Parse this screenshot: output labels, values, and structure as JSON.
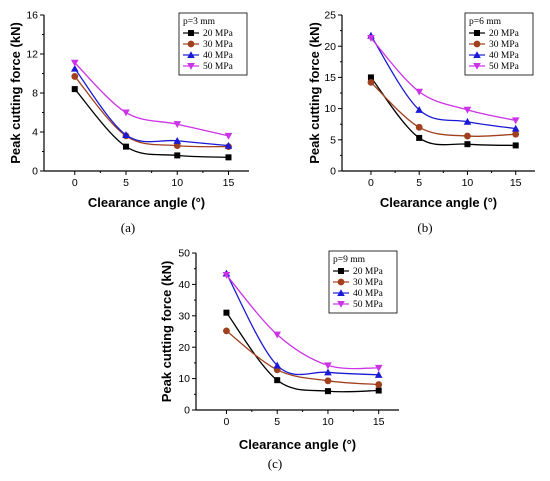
{
  "series_colors": {
    "20 MPa": "#000000",
    "30 MPa": "#a0401e",
    "40 MPa": "#1a1ad6",
    "50 MPa": "#cc33e6"
  },
  "markers": {
    "20 MPa": "square",
    "30 MPa": "circle",
    "40 MPa": "triangle-up",
    "50 MPa": "triangle-down"
  },
  "chart_data": [
    {
      "type": "scatter",
      "panel_label": "(a)",
      "legend_title": "p=3 mm",
      "xlabel": "Clearance angle (°)",
      "ylabel": "Peak cutting force (kN)",
      "xlim": [
        -3,
        17
      ],
      "ylim": [
        0,
        16
      ],
      "xticks": [
        0,
        5,
        10,
        15
      ],
      "yticks": [
        0,
        4,
        8,
        12,
        16
      ],
      "legend_position": "top-right",
      "x": [
        0,
        5,
        10,
        15
      ],
      "series": [
        {
          "name": "20 MPa",
          "values": [
            8.4,
            2.5,
            1.6,
            1.4
          ]
        },
        {
          "name": "30 MPa",
          "values": [
            9.7,
            3.6,
            2.6,
            2.5
          ]
        },
        {
          "name": "40 MPa",
          "values": [
            10.5,
            3.7,
            3.1,
            2.6
          ]
        },
        {
          "name": "50 MPa",
          "values": [
            11.1,
            6.0,
            4.8,
            3.6
          ]
        }
      ]
    },
    {
      "type": "scatter",
      "panel_label": "(b)",
      "legend_title": "p=6 mm",
      "xlabel": "Clearance angle (°)",
      "ylabel": "Peak cutting force (kN)",
      "xlim": [
        -3,
        17
      ],
      "ylim": [
        0,
        25
      ],
      "xticks": [
        0,
        5,
        10,
        15
      ],
      "yticks": [
        0,
        5,
        10,
        15,
        20,
        25
      ],
      "legend_position": "top-right",
      "x": [
        0,
        5,
        10,
        15
      ],
      "series": [
        {
          "name": "20 MPa",
          "values": [
            15.0,
            5.3,
            4.3,
            4.1
          ]
        },
        {
          "name": "30 MPa",
          "values": [
            14.2,
            7.0,
            5.6,
            5.9
          ]
        },
        {
          "name": "40 MPa",
          "values": [
            21.7,
            9.8,
            7.9,
            6.8
          ]
        },
        {
          "name": "50 MPa",
          "values": [
            21.3,
            12.7,
            9.8,
            8.1
          ]
        }
      ]
    },
    {
      "type": "scatter",
      "panel_label": "(c)",
      "legend_title": "p=9 mm",
      "xlabel": "Clearance angle (°)",
      "ylabel": "Peak cutting force (kN)",
      "xlim": [
        -3,
        17
      ],
      "ylim": [
        0,
        50
      ],
      "xticks": [
        0,
        5,
        10,
        15
      ],
      "yticks": [
        0,
        10,
        20,
        30,
        40,
        50
      ],
      "legend_position": "top-right",
      "x": [
        0,
        5,
        10,
        15
      ],
      "series": [
        {
          "name": "20 MPa",
          "values": [
            31.0,
            9.5,
            6.0,
            6.2
          ]
        },
        {
          "name": "30 MPa",
          "values": [
            25.2,
            12.8,
            9.3,
            8.1
          ]
        },
        {
          "name": "40 MPa",
          "values": [
            43.5,
            14.2,
            12.0,
            11.2
          ]
        },
        {
          "name": "50 MPa",
          "values": [
            43.0,
            24.0,
            14.2,
            13.4
          ]
        }
      ]
    }
  ]
}
